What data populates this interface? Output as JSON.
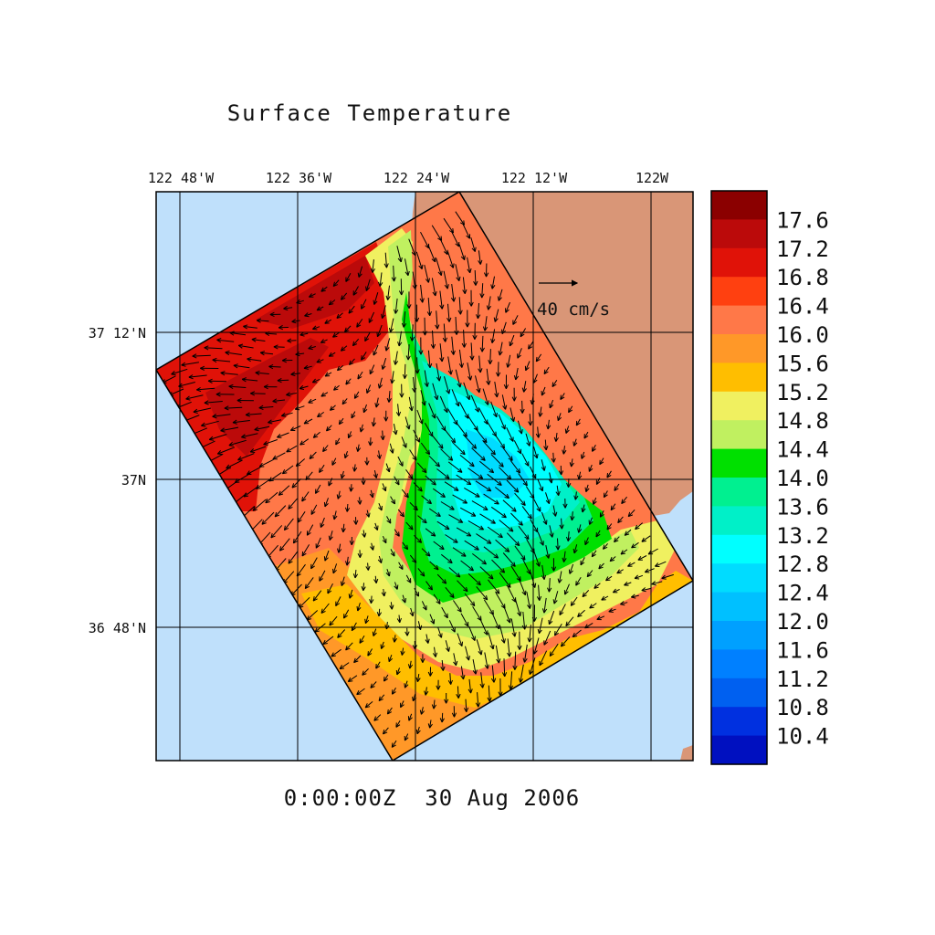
{
  "title": "Surface Temperature",
  "timestamp": "0:00:00Z  30 Aug 2006",
  "map": {
    "lon_labels": [
      "122 48'W",
      "122 36'W",
      "122 24'W",
      "122 12'W",
      "122W"
    ],
    "lat_labels": [
      "37 12'N",
      "37N",
      "36 48'N"
    ],
    "vector_reference": "40 cm/s",
    "colors": {
      "ocean": "#bfe0fb",
      "land": "#d99677"
    }
  },
  "colorbar": {
    "labels": [
      "17.6",
      "17.2",
      "16.8",
      "16.4",
      "16.0",
      "15.6",
      "15.2",
      "14.8",
      "14.4",
      "14.0",
      "13.6",
      "13.2",
      "12.8",
      "12.4",
      "12.0",
      "11.6",
      "11.2",
      "10.8",
      "10.4"
    ],
    "colors": [
      "#8b0000",
      "#bb0a0a",
      "#e01208",
      "#ff4010",
      "#ff7848",
      "#ff9828",
      "#ffbe00",
      "#f0f060",
      "#c0f060",
      "#00e000",
      "#00f090",
      "#00f0c8",
      "#00ffff",
      "#00dcff",
      "#00c0ff",
      "#00a0ff",
      "#0080ff",
      "#0060f0",
      "#0030e0",
      "#0010c0"
    ]
  }
}
